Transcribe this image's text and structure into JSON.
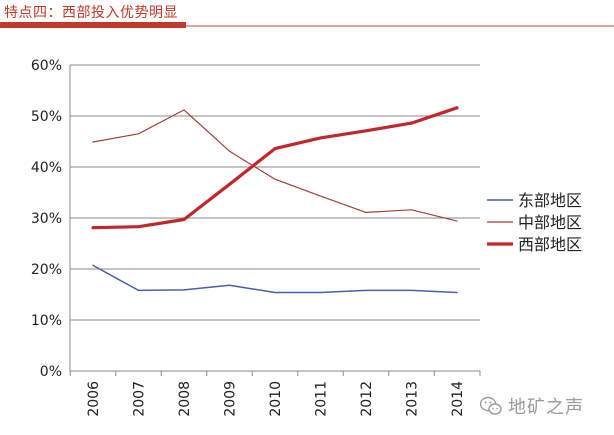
{
  "header": {
    "title": "特点四：西部投入优势明显"
  },
  "watermark": {
    "text": "地矿之声",
    "icon": "wechat-icon"
  },
  "colors": {
    "accent": "#c0392b",
    "east": "#4a5fa5",
    "central": "#a0413d",
    "west": "#c0282c"
  },
  "chart_data": {
    "type": "line",
    "title": "",
    "xlabel": "",
    "ylabel": "",
    "categories": [
      "2006",
      "2007",
      "2008",
      "2009",
      "2010",
      "2011",
      "2012",
      "2013",
      "2014"
    ],
    "ylim": [
      0,
      0.6
    ],
    "yticks": [
      "0%",
      "10%",
      "20%",
      "30%",
      "40%",
      "50%",
      "60%"
    ],
    "grid": true,
    "legend": "right",
    "series": [
      {
        "name": "东部地区",
        "color": "#4a5fa5",
        "width": 1.5,
        "values": [
          0.207,
          0.158,
          0.159,
          0.168,
          0.154,
          0.154,
          0.158,
          0.158,
          0.154
        ]
      },
      {
        "name": "中部地区",
        "color": "#a0413d",
        "width": 1.2,
        "values": [
          0.449,
          0.465,
          0.512,
          0.431,
          0.376,
          0.343,
          0.311,
          0.316,
          0.294
        ]
      },
      {
        "name": "西部地区",
        "color": "#c0282c",
        "width": 3.2,
        "values": [
          0.281,
          0.283,
          0.297,
          0.366,
          0.436,
          0.457,
          0.471,
          0.486,
          0.516
        ]
      }
    ]
  }
}
